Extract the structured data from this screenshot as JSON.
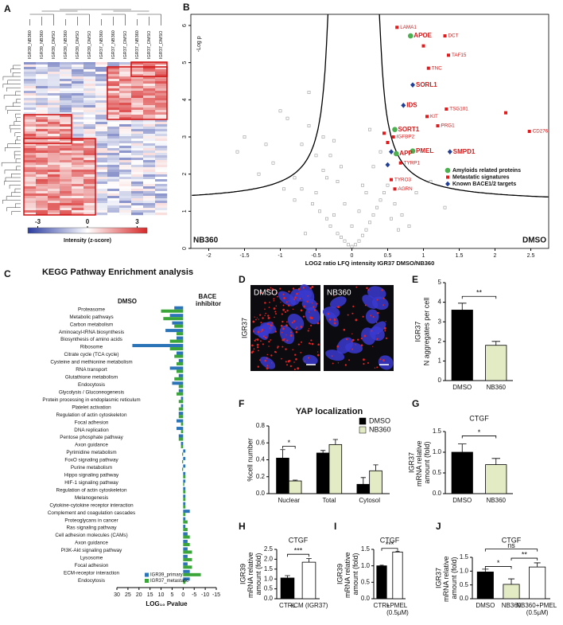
{
  "panel_labels": [
    "A",
    "B",
    "C",
    "D",
    "E",
    "F",
    "G",
    "H",
    "I",
    "J"
  ],
  "panel_D": {
    "cell_line": "IGR37",
    "conditions": [
      "DMSO",
      "NB360"
    ]
  },
  "chart_data": [
    {
      "type": "heatmap",
      "columns": [
        "IGR39_NB360",
        "IGR39_NB360",
        "IGR39_DMSO",
        "IGR39_NB360",
        "IGR39_DMSO",
        "IGR39_DMSO",
        "IGR37_NB360",
        "IGR37_NB360",
        "IGR37_DMSO",
        "IGR37_NB360",
        "IGR37_DMSO",
        "IGR37_DMSO"
      ],
      "clim": [
        -3.6,
        3.6
      ],
      "colorbar_ticks": [
        -3,
        0,
        3
      ],
      "colorbar_label": "Intensity (z-score)"
    },
    {
      "type": "scatter",
      "x_label": "LOG2 ratio LFQ intensity IGR37 DMSO/NB360",
      "y_label": "-Log p",
      "xlim": [
        -2.25,
        2.75
      ],
      "ylim": [
        0,
        6.3
      ],
      "xticks": [
        -2,
        -1.5,
        -1,
        -0.5,
        0,
        0.5,
        1,
        1.5,
        2,
        2.5
      ],
      "yticks": [
        0,
        1,
        2,
        3,
        4,
        5,
        6
      ],
      "corner_labels": [
        "NB360",
        "DMSO"
      ],
      "legend": "lower right",
      "series": [
        {
          "color": "#9a9a9a",
          "marker": "square-open",
          "x": [
            -1.6,
            -1.3,
            -1.1,
            -0.95,
            -0.8,
            -0.7,
            -0.6,
            -0.55,
            -0.5,
            -0.45,
            -0.4,
            -0.35,
            -0.3,
            -0.25,
            -0.2,
            -0.15,
            -0.1,
            -0.05,
            0,
            0.05,
            0.1,
            0.15,
            0.2,
            0.25,
            0.3,
            0.35,
            0.4,
            0.45,
            0.5,
            -0.9,
            -0.6,
            -0.4,
            -0.3,
            -0.2,
            -0.1,
            0,
            0.1,
            0.2,
            0.3,
            0.4,
            -1.5,
            -0.7,
            -0.35,
            0.6,
            0.7,
            0.9,
            1.1,
            -0.5,
            -0.25,
            0.15,
            -0.8,
            -1.0,
            0.55,
            0.25,
            -0.15,
            -1.2,
            1.3,
            0.8,
            -0.65,
            0.65
          ],
          "y": [
            2.6,
            2.0,
            2.3,
            1.6,
            1.9,
            2.8,
            3.3,
            1.2,
            1.5,
            1.0,
            2.1,
            0.8,
            0.6,
            0.9,
            0.4,
            0.3,
            0.2,
            0.1,
            0.05,
            0.1,
            0.2,
            0.35,
            0.5,
            0.7,
            0.9,
            1.1,
            1.3,
            1.5,
            1.7,
            3.5,
            4.2,
            3.0,
            2.5,
            1.8,
            1.2,
            0.6,
            1.0,
            1.5,
            2.2,
            2.6,
            3.0,
            1.6,
            1.9,
            1.2,
            0.9,
            1.5,
            1.8,
            2.5,
            2.9,
            1.7,
            1.3,
            3.7,
            0.8,
            3.2,
            2.2,
            2.8,
            1.1,
            0.6,
            0.4,
            0.5
          ]
        },
        {
          "name": "Amyloids related proteins",
          "color": "#4caf50",
          "marker": "circle",
          "labels": [
            "APOE",
            "SORT1",
            "PMEL",
            "APP"
          ],
          "x": [
            0.82,
            0.6,
            0.85,
            0.62
          ],
          "y": [
            5.72,
            3.2,
            2.62,
            2.55
          ]
        },
        {
          "name": "Metastatic signatures",
          "color": "#e31a1c",
          "marker": "square",
          "labels": [
            "LAMA1",
            "DCT",
            null,
            "TAF15",
            "TNC",
            "TSG101",
            null,
            "KIT",
            "PRG1",
            "IGFBP2",
            "CD276",
            "TYRP1",
            "TYRO3",
            "AGRN",
            null,
            null
          ],
          "x": [
            0.63,
            1.3,
            1.0,
            1.35,
            1.07,
            1.32,
            2.15,
            1.05,
            1.2,
            0.58,
            2.48,
            0.68,
            0.55,
            0.6,
            0.45,
            0.5
          ],
          "y": [
            5.95,
            5.72,
            5.45,
            5.2,
            4.85,
            3.75,
            3.65,
            3.55,
            3.3,
            3.0,
            3.15,
            2.3,
            1.85,
            1.6,
            3.1,
            2.85
          ]
        },
        {
          "name": "Known BACE1/2 targets",
          "color": "#1f3f99",
          "marker": "diamond",
          "labels": [
            "SORL1",
            "IDS",
            "SMPD1",
            null,
            null
          ],
          "x": [
            0.85,
            0.72,
            1.37,
            0.55,
            0.5
          ],
          "y": [
            4.4,
            3.85,
            2.6,
            2.6,
            2.25
          ]
        }
      ]
    },
    {
      "type": "barh",
      "title": "KEGG Pathway Enrichment analysis",
      "side_labels": [
        "DMSO",
        "BACE inhibitor"
      ],
      "x_label": "LOG₁₀ Pvalue",
      "xlim": [
        30,
        -15
      ],
      "xticks": [
        30,
        25,
        20,
        15,
        10,
        5,
        0,
        -5,
        -10,
        -15
      ],
      "legend": "lower right",
      "categories": [
        "Proteasome",
        "Metabolic pathways",
        "Carbon metabolism",
        "Aminoacyl-tRNA biosynthesis",
        "Biosynthesis of amino acids",
        "Ribosome",
        "Citrate cycle (TCA cycle)",
        "Cysteine and methionine metabolism",
        "RNA transport",
        "Glutathione metabolism",
        "Endocytosis",
        "Glycolysis / Gluconeogenesis",
        "Protein processing in endoplasmic reticulum",
        "Platelet activation",
        "Regulation of actin cytoskeleton",
        "Focal adhesion",
        "DNA replication",
        "Pentose phosphate pathway",
        "Axon guidance",
        "Pyrimidine metabolism",
        "FoxO signaling pathway",
        "Purine metabolism",
        "Hippo signaling pathway",
        "HIF-1 signaling pathway",
        "Regulation of actin cytoskeleton",
        "Melanogenesis",
        "Cytokine-cytokine receptor interaction",
        "Complement and coagulation cascades",
        "Proteoglycans in cancer",
        "Ras signaling pathway",
        "Cell adhesion molecules (CAMs)",
        "Axon guidance",
        "PI3K-Akt signaling pathway",
        "Lysosome",
        "Focal adhesion",
        "ECM-receptor interaction",
        "Endocytosis"
      ],
      "series": [
        {
          "name": "IGR39_primary",
          "color": "#2b74b8",
          "values": [
            4,
            6,
            5,
            8,
            3,
            23,
            3,
            2,
            6,
            2,
            5,
            2,
            1,
            1,
            2,
            3,
            3,
            2,
            1,
            -1,
            -1,
            -1,
            -1,
            -1,
            -1,
            -1,
            -1,
            -3,
            -1,
            -1,
            -2,
            -2,
            -2,
            -2,
            -2,
            -3,
            -3
          ]
        },
        {
          "name": "IGR37_metastatic",
          "color": "#3aa63a",
          "values": [
            10,
            9,
            4,
            3,
            6,
            6,
            4,
            3,
            3,
            4,
            2,
            3,
            2,
            2,
            2,
            1,
            1,
            2,
            1,
            0.5,
            0.5,
            0.5,
            -1,
            -0.5,
            -1,
            -1,
            -1,
            -1,
            -2,
            -2,
            -3,
            -3,
            -4,
            -4,
            -4,
            -8,
            -1
          ]
        }
      ]
    },
    {
      "type": "bar",
      "cell_line": "IGR37",
      "y_label": "N aggregates per cell",
      "categories": [
        "DMSO",
        "NB360"
      ],
      "series": [
        {
          "colors": [
            "#000000",
            "#e3ebc4"
          ],
          "values": [
            3.6,
            1.8
          ],
          "errors": [
            0.35,
            0.2
          ]
        }
      ],
      "ylim": [
        0,
        5
      ],
      "yticks": [
        0,
        1,
        2,
        3,
        4,
        5
      ],
      "annotations": [
        "**"
      ]
    },
    {
      "type": "bar",
      "title": "YAP localization",
      "y_label": "%cell number",
      "categories": [
        "Nuclear",
        "Total",
        "Cytosol"
      ],
      "legend": "upper right",
      "series": [
        {
          "name": "DMSO",
          "color": "#000000",
          "values": [
            0.42,
            0.48,
            0.11
          ],
          "errors": [
            0.1,
            0.03,
            0.08
          ]
        },
        {
          "name": "NB360",
          "color": "#e3ebc4",
          "values": [
            0.15,
            0.58,
            0.27
          ],
          "errors": [
            0.01,
            0.06,
            0.07
          ]
        }
      ],
      "ylim": [
        0,
        0.8
      ],
      "yticks": [
        {
          "value": 0,
          "label": "0.0"
        },
        0.2,
        0.4,
        0.6,
        0.8
      ],
      "annotations": [
        "*"
      ]
    },
    {
      "type": "bar",
      "title": "CTGF",
      "cell_line": "IGR37",
      "y_label": "mRNA relative amount (fold)",
      "categories": [
        "DMSO",
        "NB360"
      ],
      "series": [
        {
          "colors": [
            "#000000",
            "#e3ebc4"
          ],
          "values": [
            1.0,
            0.7
          ],
          "errors": [
            0.2,
            0.15
          ]
        }
      ],
      "ylim": [
        0,
        1.5
      ],
      "yticks": [
        {
          "value": 0,
          "label": "0.0"
        },
        0.5,
        {
          "value": 1,
          "label": "1.0"
        },
        1.5
      ],
      "annotations": [
        "*"
      ]
    },
    {
      "type": "bar",
      "title": "CTGF",
      "cell_line": "IGR39",
      "y_label": "mRNA relative amount (fold)",
      "categories": [
        "CTRL",
        "+CM (IGR37)"
      ],
      "series": [
        {
          "colors": [
            "#000000",
            "#ffffff"
          ],
          "values": [
            1.05,
            1.85
          ],
          "errors": [
            0.12,
            0.18
          ]
        }
      ],
      "ylim": [
        0,
        2.5
      ],
      "yticks": [
        {
          "value": 0,
          "label": "0.0"
        },
        0.5,
        {
          "value": 1,
          "label": "1.0"
        },
        1.5,
        {
          "value": 2,
          "label": "2.0"
        },
        2.5
      ],
      "annotations": [
        "***"
      ]
    },
    {
      "type": "bar",
      "title": "CTGF",
      "cell_line": "IGR39",
      "y_label": "mRNA relative amount (fold)",
      "categories": [
        "CTRL",
        "+PMEL (0.5µM)"
      ],
      "series": [
        {
          "colors": [
            "#000000",
            "#ffffff"
          ],
          "values": [
            1.0,
            1.42
          ],
          "errors": [
            0.02,
            0.02
          ]
        }
      ],
      "ylim": [
        0,
        1.5
      ],
      "yticks": [
        {
          "value": 0,
          "label": "0.0"
        },
        0.5,
        {
          "value": 1,
          "label": "1.0"
        },
        1.5
      ],
      "annotations": [
        "***"
      ]
    },
    {
      "type": "bar",
      "title": "CTGF",
      "cell_line": "IGR37",
      "y_label": "mRNA relative amount (fold)",
      "categories": [
        "DMSO",
        "NB360",
        "NB360+PMEL (0.5µM)"
      ],
      "series": [
        {
          "colors": [
            "#000000",
            "#e3ebc4",
            "#ffffff"
          ],
          "values": [
            0.97,
            0.52,
            1.15
          ],
          "errors": [
            0.1,
            0.2,
            0.15
          ]
        }
      ],
      "ylim": [
        0,
        1.5
      ],
      "yticks": [
        {
          "value": 0,
          "label": "0.0"
        },
        0.5,
        {
          "value": 1,
          "label": "1.0"
        },
        1.5
      ],
      "annotations": [
        "ns",
        "*",
        "**"
      ]
    }
  ]
}
